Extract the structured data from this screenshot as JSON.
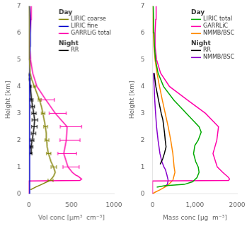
{
  "chart_data": [
    {
      "type": "line",
      "xlabel": "Vol conc [μm³  cm⁻³]",
      "ylabel": "Height [km]",
      "xlim": [
        0,
        1000
      ],
      "ylim": [
        0,
        7
      ],
      "xticks": [
        0,
        500,
        1000
      ],
      "yticks": [
        0,
        1,
        2,
        3,
        4,
        5,
        6,
        7
      ],
      "grid": false,
      "legend": "upper right",
      "series": [
        {
          "name": "LIRIC coarse",
          "legend_group": "Day",
          "color": "#808000",
          "x": [
            20,
            80,
            150,
            250,
            290,
            310,
            290,
            260,
            230,
            215,
            210,
            205,
            195,
            180,
            165,
            148,
            125,
            95,
            65,
            35,
            15,
            8,
            5,
            4,
            3
          ],
          "y": [
            0.15,
            0.25,
            0.35,
            0.5,
            0.65,
            0.8,
            1.0,
            1.2,
            1.5,
            1.75,
            2.0,
            2.25,
            2.5,
            2.75,
            3.0,
            3.25,
            3.5,
            3.75,
            4.0,
            4.25,
            4.5,
            5.0,
            5.5,
            6.5,
            7.0
          ]
        },
        {
          "type": "errorbar",
          "color": "#808000",
          "x": [
            250,
            290,
            230,
            210,
            195,
            165,
            125,
            65
          ],
          "y": [
            0.5,
            1.0,
            1.5,
            2.0,
            2.5,
            3.0,
            3.5,
            4.0
          ],
          "xerr_low": [
            25,
            28,
            22,
            20,
            20,
            17,
            14,
            10
          ],
          "xerr_high": [
            35,
            35,
            28,
            26,
            24,
            22,
            18,
            14
          ]
        },
        {
          "name": "LIRIC fine",
          "legend_group": "Day",
          "color": "#0000cc",
          "x": [
            5,
            8,
            10,
            10,
            12,
            10,
            8,
            7,
            7,
            10,
            15,
            18,
            15,
            8
          ],
          "y": [
            0.0,
            0.5,
            1.0,
            1.5,
            2.0,
            3.0,
            3.5,
            4.0,
            4.5,
            5.0,
            5.5,
            6.0,
            6.5,
            7.0
          ]
        },
        {
          "name": "GARRLiG total",
          "legend_group": "Day",
          "color": "#ff00aa",
          "x": [
            0,
            0,
            600,
            620,
            600,
            580,
            550,
            510,
            460,
            410,
            440,
            450,
            310,
            200,
            95,
            45,
            20,
            12,
            15,
            25,
            28
          ],
          "y": [
            0.0,
            0.48,
            0.5,
            0.55,
            0.6,
            0.65,
            0.7,
            0.8,
            1.0,
            1.5,
            2.0,
            2.5,
            3.0,
            3.5,
            4.0,
            4.5,
            5.0,
            5.5,
            6.0,
            6.5,
            7.0
          ]
        },
        {
          "type": "errorbar",
          "color": "#ff00aa",
          "x": [
            460,
            410,
            440,
            450,
            310,
            200
          ],
          "y": [
            1.0,
            1.5,
            2.0,
            2.5,
            3.0,
            3.5
          ],
          "xerr_low": [
            60,
            70,
            75,
            80,
            70,
            55
          ],
          "xerr_high": [
            130,
            150,
            160,
            170,
            130,
            100
          ]
        },
        {
          "name": "RR",
          "legend_group": "Night",
          "color": "#000000",
          "x": [
            22,
            28,
            38,
            52,
            62,
            68,
            58,
            45,
            32,
            18,
            10,
            5
          ],
          "y": [
            1.5,
            1.75,
            2.0,
            2.25,
            2.5,
            2.75,
            3.0,
            3.25,
            3.5,
            4.0,
            4.25,
            4.45
          ],
          "xerr_low": [
            10,
            13,
            18,
            22,
            28,
            30,
            22,
            18,
            14,
            8,
            5,
            3
          ],
          "xerr_high": [
            15,
            18,
            22,
            28,
            35,
            35,
            28,
            22,
            16,
            10,
            6,
            4
          ]
        }
      ]
    },
    {
      "type": "line",
      "xlabel": "Mass conc [μg  m⁻³]",
      "ylabel": "Height [km]",
      "xlim": [
        0,
        2000
      ],
      "ylim": [
        0,
        7
      ],
      "xticks": [
        0,
        {
          "value": 1000,
          "label": "1,000"
        },
        2000
      ],
      "yticks": [
        0,
        1,
        2,
        3,
        4,
        5,
        6,
        7
      ],
      "grid": false,
      "legend": "upper right",
      "series": [
        {
          "name": "LIRIC total",
          "legend_group": "Day",
          "color": "#00aa00",
          "x": [
            100,
            280,
            750,
            950,
            1050,
            1100,
            1080,
            1020,
            970,
            1000,
            1080,
            1150,
            1100,
            950,
            800,
            500,
            260,
            130,
            70,
            45,
            35,
            25,
            15
          ],
          "y": [
            0.25,
            0.3,
            0.35,
            0.45,
            0.6,
            0.8,
            1.0,
            1.2,
            1.5,
            1.8,
            2.0,
            2.3,
            2.5,
            2.75,
            3.0,
            3.5,
            4.0,
            4.5,
            5.0,
            5.5,
            6.0,
            6.5,
            7.0
          ]
        },
        {
          "name": "GARRLiC",
          "legend_group": "Day",
          "color": "#ff00aa",
          "x": [
            0,
            0,
            1800,
            1820,
            1800,
            1770,
            1730,
            1660,
            1530,
            1430,
            1520,
            1560,
            1250,
            820,
            400,
            190,
            95,
            60,
            60,
            75,
            85
          ],
          "y": [
            0.0,
            0.48,
            0.5,
            0.55,
            0.6,
            0.65,
            0.7,
            0.8,
            1.0,
            1.5,
            2.0,
            2.5,
            3.0,
            3.5,
            4.0,
            4.5,
            5.0,
            5.5,
            6.0,
            6.5,
            7.0
          ]
        },
        {
          "name": "NMMB/BSC",
          "legend_group": "Day",
          "color": "#ff8800",
          "x": [
            0,
            50,
            180,
            350,
            480,
            530,
            510,
            480,
            430,
            370,
            300,
            230,
            165,
            105,
            60,
            32,
            20,
            14,
            10
          ],
          "y": [
            0.0,
            0.05,
            0.15,
            0.3,
            0.5,
            0.8,
            1.0,
            1.5,
            2.0,
            2.5,
            3.0,
            3.5,
            4.0,
            4.5,
            5.0,
            5.5,
            6.0,
            6.5,
            7.0
          ]
        },
        {
          "name": "RR",
          "legend_group": "Night",
          "color": "#000000",
          "x": [
            180,
            240,
            280,
            320,
            300,
            285,
            265,
            245,
            205,
            140,
            78,
            38
          ],
          "y": [
            1.1,
            1.3,
            1.5,
            1.75,
            2.0,
            2.25,
            2.5,
            2.75,
            3.0,
            3.5,
            4.0,
            4.5
          ]
        },
        {
          "name": "NMMB/BSC",
          "legend_group": "Night",
          "color": "#8800cc",
          "x": [
            280,
            350,
            370,
            340,
            305,
            270,
            220,
            175,
            130,
            95,
            72,
            52,
            38,
            22
          ],
          "y": [
            0.25,
            0.35,
            0.5,
            0.7,
            0.9,
            1.0,
            1.2,
            1.5,
            2.0,
            2.5,
            3.0,
            3.5,
            4.0,
            4.5
          ]
        }
      ]
    }
  ]
}
